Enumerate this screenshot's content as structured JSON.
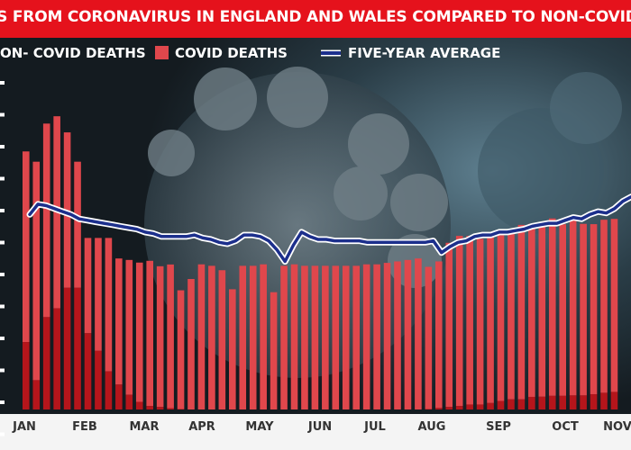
{
  "title": "IS FROM CORONAVIRUS IN ENGLAND AND WALES COMPARED TO NON-COVID DE",
  "legend": {
    "non_covid": "ON- COVID DEATHS",
    "covid": "COVID DEATHS",
    "average": "FIVE-YEAR AVERAGE"
  },
  "colors": {
    "title_bg": "#e5121c",
    "non_covid": "#e0474c",
    "covid": "#b5151b",
    "average": "#1c2f8c",
    "average_outline": "#ffffff"
  },
  "chart_data": {
    "type": "bar",
    "ylim": [
      0,
      24000
    ],
    "month_labels": [
      "JAN",
      "FEB",
      "MAR",
      "APR",
      "MAY",
      "JUN",
      "JUL",
      "AUG",
      "SEP",
      "OCT",
      "NOV"
    ],
    "series": [
      {
        "name": "COVID DEATHS",
        "values": [
          4600,
          2000,
          6300,
          6900,
          8300,
          8300,
          5200,
          4000,
          2600,
          1700,
          1000,
          520,
          240,
          170,
          90,
          30,
          0,
          0,
          0,
          0,
          0,
          0,
          0,
          0,
          0,
          0,
          0,
          0,
          0,
          0,
          0,
          0,
          0,
          0,
          0,
          0,
          0,
          0,
          0,
          30,
          100,
          170,
          240,
          340,
          340,
          440,
          580,
          690,
          690,
          860,
          870,
          930,
          930,
          960,
          960,
          1040,
          1140,
          1200
        ]
      },
      {
        "name": "ON- COVID DEATHS",
        "values": [
          13000,
          14900,
          13200,
          13100,
          10600,
          8600,
          6500,
          7700,
          9100,
          8600,
          9200,
          9500,
          9900,
          9600,
          9800,
          8100,
          8900,
          9900,
          9800,
          9500,
          8200,
          9800,
          9800,
          9900,
          8000,
          9800,
          9900,
          9800,
          9800,
          9800,
          9800,
          9800,
          9800,
          9900,
          9900,
          10000,
          10100,
          10200,
          10300,
          9700,
          10000,
          11200,
          11600,
          11500,
          11300,
          11400,
          11300,
          11500,
          11900,
          11800,
          11900,
          12100,
          11700,
          12100,
          11700,
          11600,
          11800,
          11800
        ]
      },
      {
        "name": "FIVE-YEAR AVERAGE",
        "type": "line",
        "values": [
          13300,
          14000,
          13900,
          13700,
          13500,
          13300,
          13000,
          12900,
          12800,
          12700,
          12600,
          12500,
          12400,
          12300,
          12100,
          12000,
          11800,
          11800,
          11800,
          11800,
          11900,
          11700,
          11600,
          11400,
          11300,
          11500,
          11900,
          11900,
          11800,
          11500,
          10900,
          10100,
          11200,
          12100,
          11800,
          11600,
          11600,
          11500,
          11500,
          11500,
          11500,
          11400,
          11400,
          11400,
          11400,
          11400,
          11400,
          11400,
          11400,
          11500,
          10700,
          11100,
          11400,
          11500,
          11800,
          11900,
          11900,
          12100,
          12100,
          12200,
          12300,
          12500,
          12600,
          12700,
          12700,
          12900,
          13100,
          13000,
          13300,
          13500,
          13400,
          13700,
          14200,
          14500
        ]
      }
    ]
  }
}
